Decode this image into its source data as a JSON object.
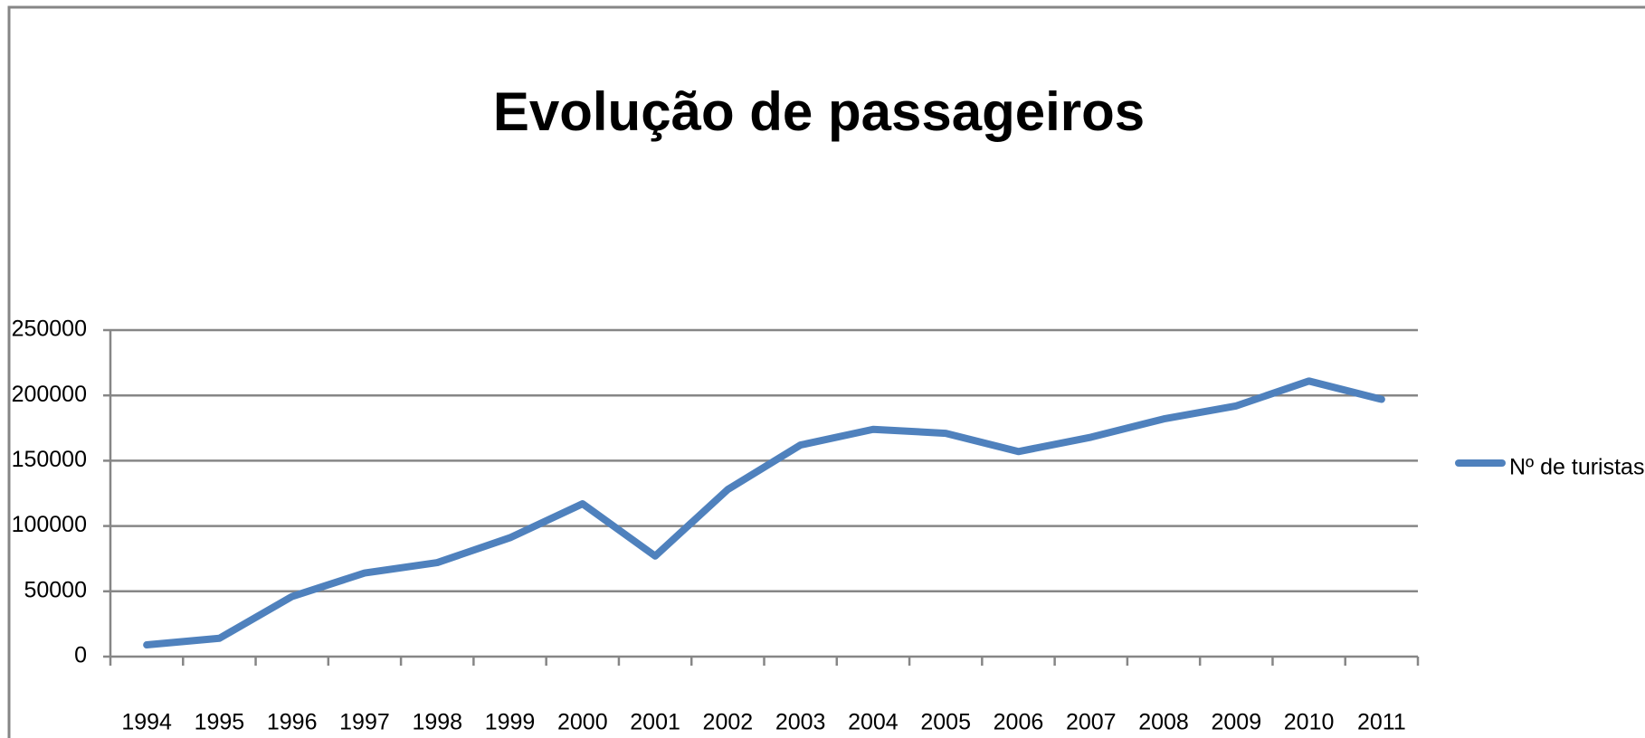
{
  "chart_data": {
    "type": "line",
    "title": "Evolução de passageiros",
    "categories": [
      "1994",
      "1995",
      "1996",
      "1997",
      "1998",
      "1999",
      "2000",
      "2001",
      "2002",
      "2003",
      "2004",
      "2005",
      "2006",
      "2007",
      "2008",
      "2009",
      "2010",
      "2011"
    ],
    "series": [
      {
        "name": "Nº de turistas",
        "color": "#4f81bd",
        "values": [
          9000,
          14000,
          46000,
          64000,
          72000,
          91000,
          117000,
          77000,
          128000,
          162000,
          174000,
          171000,
          157000,
          168000,
          182000,
          192000,
          211000,
          197000
        ]
      }
    ],
    "ylim": [
      0,
      250000
    ],
    "yticks": [
      0,
      50000,
      100000,
      150000,
      200000,
      250000
    ],
    "grid": true,
    "legend": "right"
  }
}
